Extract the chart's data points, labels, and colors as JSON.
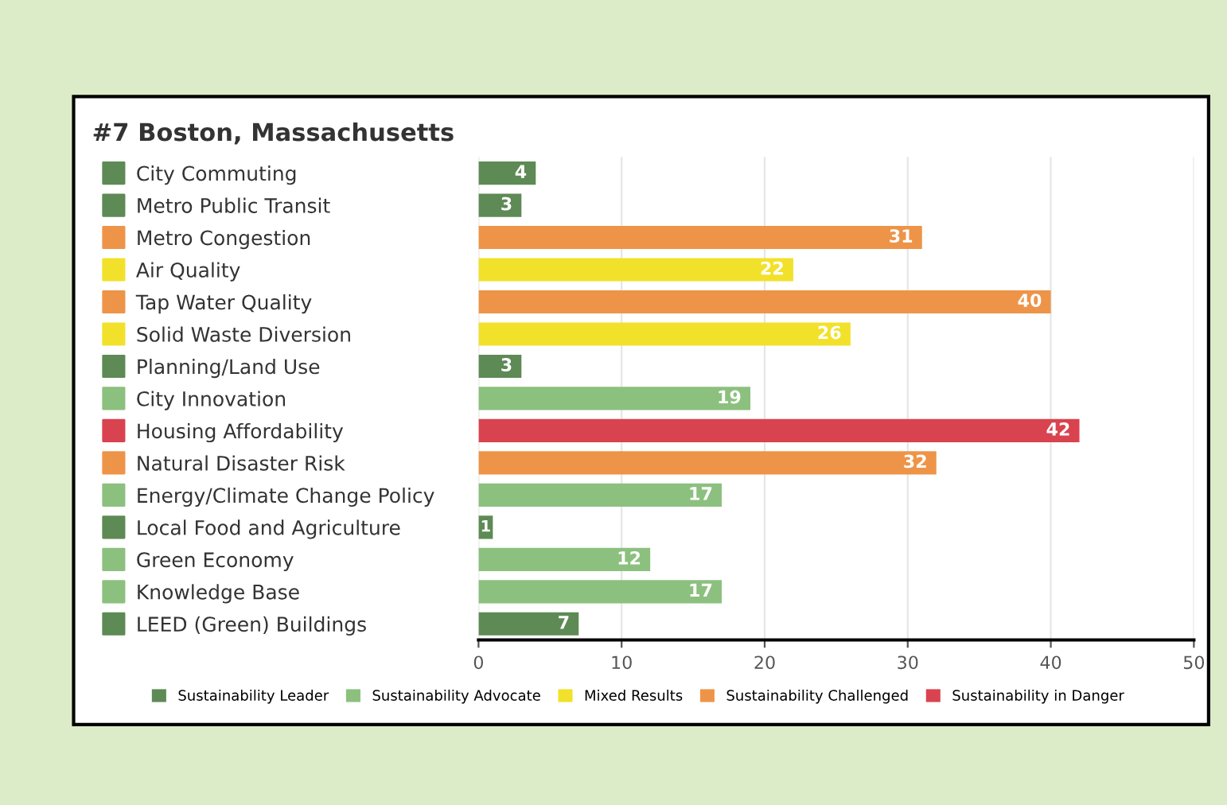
{
  "chart_data": {
    "type": "bar",
    "orientation": "horizontal",
    "title": "#7 Boston, Massachusetts",
    "categories": [
      "City Commuting",
      "Metro Public Transit",
      "Metro Congestion",
      "Air Quality",
      "Tap Water Quality",
      "Solid Waste Diversion",
      "Planning/Land Use",
      "City Innovation",
      "Housing Affordability",
      "Natural Disaster Risk",
      "Energy/Climate Change Policy",
      "Local Food and Agriculture",
      "Green Economy",
      "Knowledge Base",
      "LEED (Green) Buildings"
    ],
    "series": [
      {
        "name": "Sustainability Leader",
        "color": "#5e8a55",
        "values": [
          4,
          3,
          null,
          null,
          null,
          null,
          3,
          null,
          null,
          null,
          null,
          1,
          null,
          null,
          7
        ]
      },
      {
        "name": "Sustainability Advocate",
        "color": "#8cc07e",
        "values": [
          null,
          null,
          null,
          null,
          null,
          null,
          null,
          19,
          null,
          null,
          17,
          null,
          12,
          17,
          null
        ]
      },
      {
        "name": "Mixed Results",
        "color": "#f2e12a",
        "values": [
          null,
          null,
          null,
          22,
          null,
          26,
          null,
          null,
          null,
          null,
          null,
          null,
          null,
          null,
          null
        ]
      },
      {
        "name": "Sustainability Challenged",
        "color": "#ee9448",
        "values": [
          null,
          null,
          31,
          null,
          40,
          null,
          null,
          null,
          null,
          32,
          null,
          null,
          null,
          null,
          null
        ]
      },
      {
        "name": "Sustainability in Danger",
        "color": "#d9434f",
        "values": [
          null,
          null,
          null,
          null,
          null,
          null,
          null,
          null,
          42,
          null,
          null,
          null,
          null,
          null,
          null
        ]
      }
    ],
    "xlim": [
      0,
      50
    ],
    "xticks": [
      0,
      10,
      20,
      30,
      40,
      50
    ],
    "grid": "x",
    "legend": "bottom",
    "data_labels": true
  }
}
